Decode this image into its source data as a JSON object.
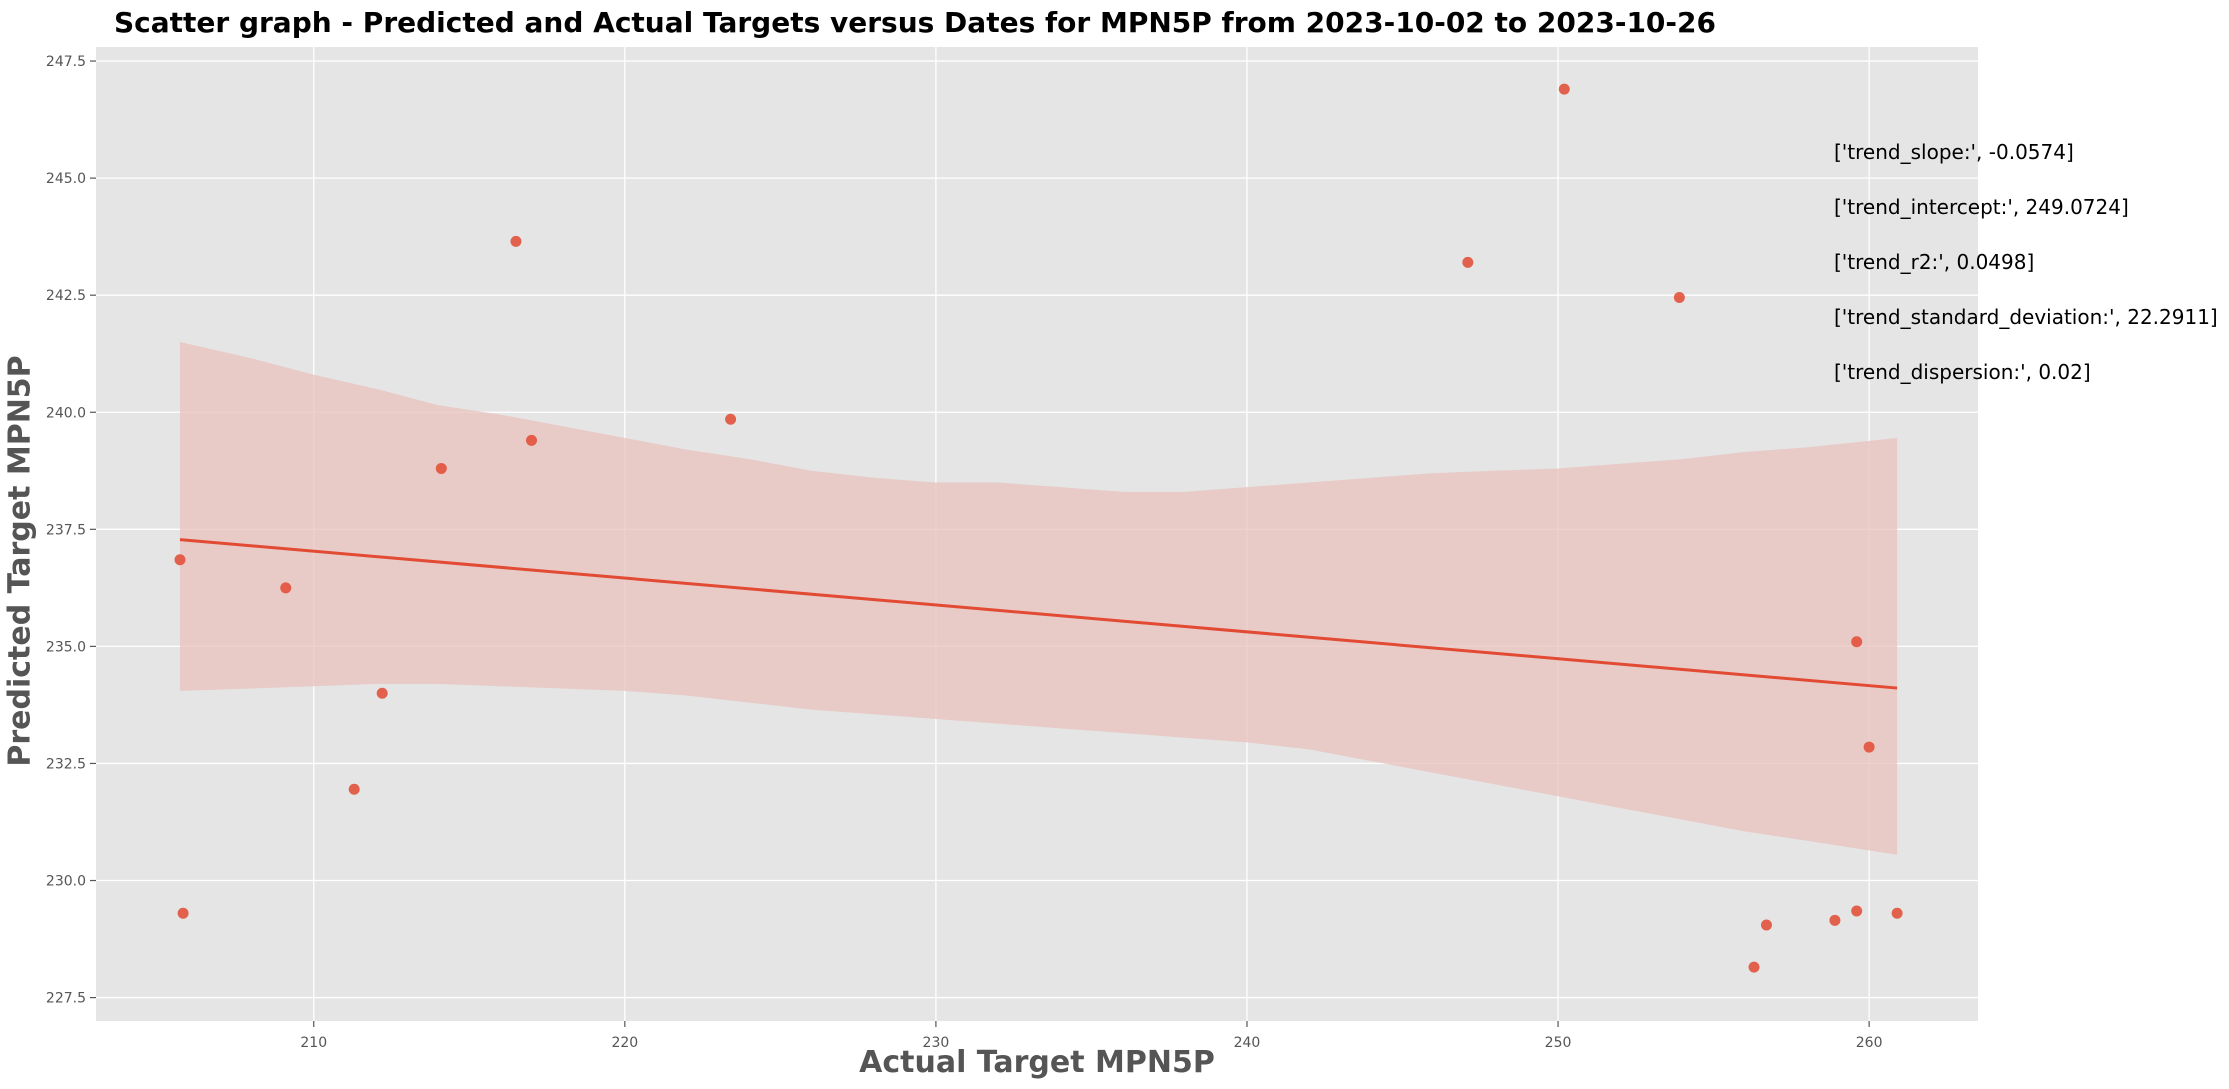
{
  "chart_data": {
    "type": "scatter",
    "title": "Scatter graph - Predicted and Actual Targets versus Dates for MPN5P from 2023-10-02 to 2023-10-26",
    "xlabel": "Actual Target MPN5P",
    "ylabel": "Predicted Target MPN5P",
    "xlim": [
      203,
      263.5
    ],
    "ylim": [
      227,
      247.8
    ],
    "xticks": [
      210,
      220,
      230,
      240,
      250,
      260
    ],
    "yticks": [
      227.5,
      230.0,
      232.5,
      235.0,
      237.5,
      240.0,
      242.5,
      245.0,
      247.5
    ],
    "grid": true,
    "points": [
      {
        "x": 205.7,
        "y": 236.85
      },
      {
        "x": 205.8,
        "y": 229.3
      },
      {
        "x": 209.1,
        "y": 236.25
      },
      {
        "x": 211.3,
        "y": 231.95
      },
      {
        "x": 212.2,
        "y": 234.0
      },
      {
        "x": 214.1,
        "y": 238.8
      },
      {
        "x": 216.5,
        "y": 243.65
      },
      {
        "x": 217.0,
        "y": 239.4
      },
      {
        "x": 223.4,
        "y": 239.85
      },
      {
        "x": 247.1,
        "y": 243.2
      },
      {
        "x": 250.2,
        "y": 246.9
      },
      {
        "x": 253.9,
        "y": 242.45
      },
      {
        "x": 256.3,
        "y": 228.15
      },
      {
        "x": 256.7,
        "y": 229.05
      },
      {
        "x": 258.9,
        "y": 229.15
      },
      {
        "x": 259.6,
        "y": 229.35
      },
      {
        "x": 259.6,
        "y": 235.1
      },
      {
        "x": 260.0,
        "y": 232.85
      },
      {
        "x": 260.9,
        "y": 229.3
      }
    ],
    "trend_line": {
      "x": [
        205.7,
        260.9
      ],
      "y": [
        237.28,
        234.11
      ]
    },
    "confidence_band": {
      "x": [
        205.7,
        208,
        210,
        212,
        214,
        216,
        218,
        220,
        222,
        224,
        226,
        228,
        230,
        232,
        234,
        236,
        238,
        240,
        242,
        244,
        246,
        248,
        250,
        252,
        254,
        256,
        258,
        260.9
      ],
      "upper": [
        241.5,
        241.15,
        240.8,
        240.5,
        240.15,
        239.95,
        239.7,
        239.45,
        239.2,
        239.0,
        238.75,
        238.6,
        238.5,
        238.5,
        238.4,
        238.3,
        238.3,
        238.4,
        238.5,
        238.6,
        238.7,
        238.75,
        238.8,
        238.9,
        239.0,
        239.15,
        239.25,
        239.45
      ],
      "lower": [
        234.05,
        234.1,
        234.15,
        234.2,
        234.2,
        234.15,
        234.1,
        234.05,
        233.95,
        233.8,
        233.65,
        233.55,
        233.45,
        233.35,
        233.25,
        233.15,
        233.05,
        232.95,
        232.8,
        232.55,
        232.3,
        232.05,
        231.8,
        231.55,
        231.3,
        231.05,
        230.85,
        230.55
      ]
    },
    "annotations": [
      "['trend_slope:', -0.0574]",
      "['trend_intercept:', 249.0724]",
      "['trend_r2:', 0.0498]",
      "['trend_standard_deviation:', 22.2911]",
      "['trend_dispersion:', 0.02]"
    ],
    "colors": {
      "background": "#e5e5e5",
      "grid": "#ffffff",
      "points": "#e24a33",
      "line": "#e24a33",
      "band": "#e8c0bc",
      "axis_label": "#555555",
      "tick_label": "#555555"
    }
  }
}
